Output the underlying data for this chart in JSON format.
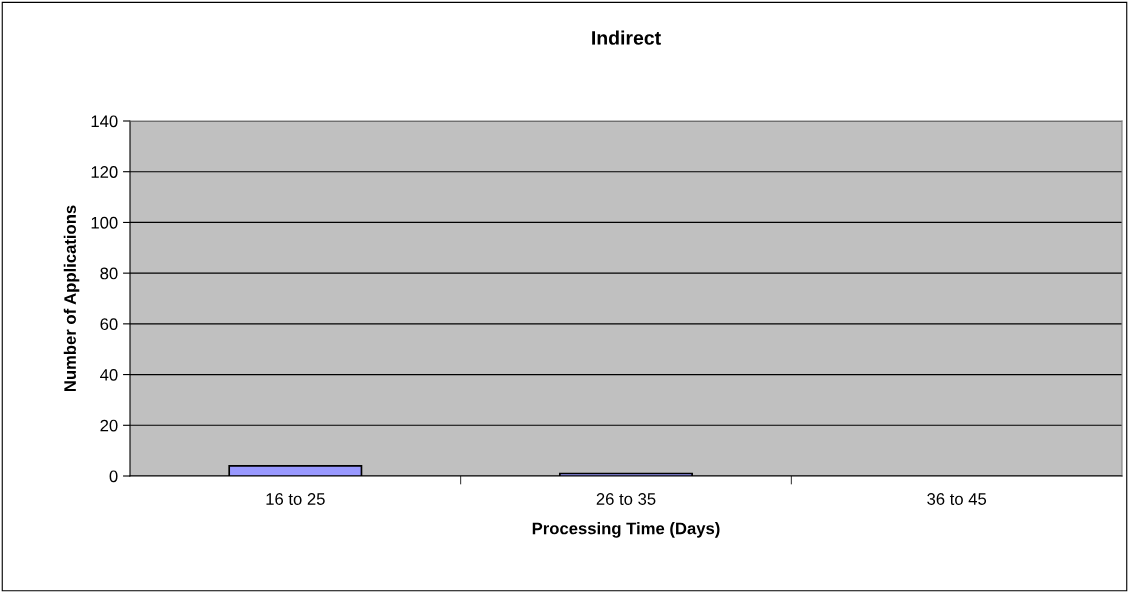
{
  "chart_data": {
    "type": "bar",
    "title": "Indirect",
    "xlabel": "Processing Time (Days)",
    "ylabel": "Number of Applications",
    "categories": [
      "16 to 25",
      "26 to 35",
      "36 to 45"
    ],
    "values": [
      4,
      1,
      null
    ],
    "color": "#9999ff",
    "ylim": [
      0,
      140
    ],
    "yticks": [
      0,
      20,
      40,
      60,
      80,
      100,
      120,
      140
    ],
    "grid": "y",
    "legend": false
  }
}
